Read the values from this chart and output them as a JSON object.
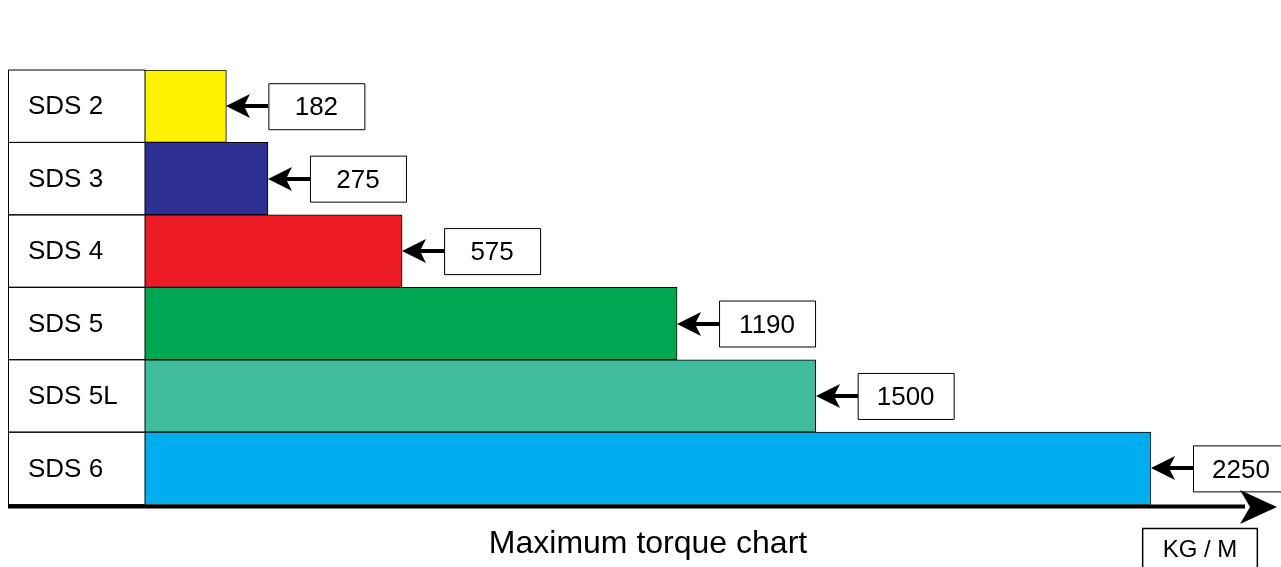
{
  "chart_data": {
    "type": "bar",
    "orientation": "horizontal",
    "title": "Maximum torque chart",
    "xlabel": "KG / M",
    "categories": [
      "SDS 2",
      "SDS 3",
      "SDS 4",
      "SDS 5",
      "SDS 5L",
      "SDS 6"
    ],
    "values": [
      182,
      275,
      575,
      1190,
      1500,
      2250
    ],
    "colors": [
      "#fff200",
      "#2e3192",
      "#ed1c24",
      "#00a651",
      "#3fbc9c",
      "#00aeef"
    ],
    "data_labels": true,
    "tick_labels": "y"
  }
}
